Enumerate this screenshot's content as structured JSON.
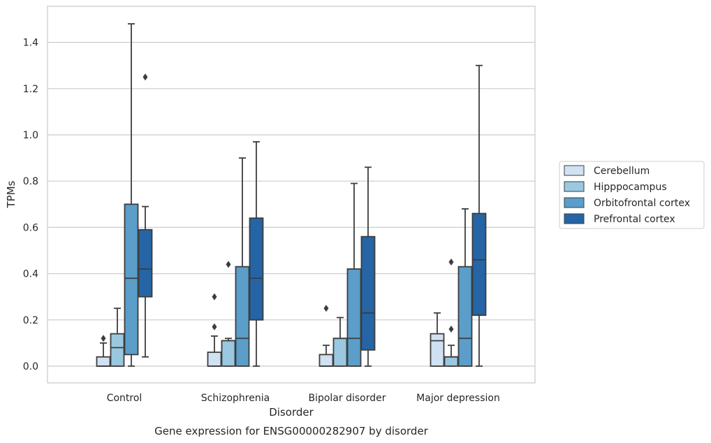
{
  "chart_data": {
    "type": "box",
    "title": "",
    "caption": "Gene expression for ENSG00000282907 by disorder",
    "xlabel": "Disorder",
    "ylabel": "TPMs",
    "ylim": [
      -0.07,
      1.56
    ],
    "yticks": [
      "0.0",
      "0.2",
      "0.4",
      "0.6",
      "0.8",
      "1.0",
      "1.2",
      "1.4"
    ],
    "grid": "horizontal",
    "legend_position": "right",
    "categories": [
      "Control",
      "Schizophrenia",
      "Bipolar disorder",
      "Major depression"
    ],
    "series": [
      {
        "name": "Cerebellum",
        "color": "#d0e1f2",
        "boxes": [
          {
            "whisker_low": 0.0,
            "q1": 0.0,
            "median": 0.0,
            "q3": 0.04,
            "whisker_high": 0.1,
            "outliers": [
              0.12
            ]
          },
          {
            "whisker_low": 0.0,
            "q1": 0.0,
            "median": 0.0,
            "q3": 0.06,
            "whisker_high": 0.13,
            "outliers": [
              0.17,
              0.3
            ]
          },
          {
            "whisker_low": 0.0,
            "q1": 0.0,
            "median": 0.0,
            "q3": 0.05,
            "whisker_high": 0.09,
            "outliers": [
              0.25
            ]
          },
          {
            "whisker_low": 0.0,
            "q1": 0.0,
            "median": 0.11,
            "q3": 0.14,
            "whisker_high": 0.23,
            "outliers": []
          }
        ]
      },
      {
        "name": "Hipppocampus",
        "color": "#9ac8e0",
        "boxes": [
          {
            "whisker_low": 0.0,
            "q1": 0.0,
            "median": 0.08,
            "q3": 0.14,
            "whisker_high": 0.25,
            "outliers": []
          },
          {
            "whisker_low": 0.0,
            "q1": 0.0,
            "median": 0.11,
            "q3": 0.11,
            "whisker_high": 0.12,
            "outliers": [
              0.44
            ]
          },
          {
            "whisker_low": 0.0,
            "q1": 0.0,
            "median": 0.12,
            "q3": 0.12,
            "whisker_high": 0.21,
            "outliers": []
          },
          {
            "whisker_low": 0.0,
            "q1": 0.0,
            "median": 0.04,
            "q3": 0.04,
            "whisker_high": 0.09,
            "outliers": [
              0.16,
              0.45
            ]
          }
        ]
      },
      {
        "name": "Orbitofrontal cortex",
        "color": "#5a9ec9",
        "boxes": [
          {
            "whisker_low": 0.0,
            "q1": 0.05,
            "median": 0.38,
            "q3": 0.7,
            "whisker_high": 1.48,
            "outliers": []
          },
          {
            "whisker_low": 0.0,
            "q1": 0.0,
            "median": 0.12,
            "q3": 0.43,
            "whisker_high": 0.9,
            "outliers": []
          },
          {
            "whisker_low": 0.0,
            "q1": 0.0,
            "median": 0.12,
            "q3": 0.42,
            "whisker_high": 0.79,
            "outliers": []
          },
          {
            "whisker_low": 0.0,
            "q1": 0.0,
            "median": 0.12,
            "q3": 0.43,
            "whisker_high": 0.68,
            "outliers": []
          }
        ]
      },
      {
        "name": "Prefrontal cortex",
        "color": "#2565a6",
        "boxes": [
          {
            "whisker_low": 0.04,
            "q1": 0.3,
            "median": 0.42,
            "q3": 0.59,
            "whisker_high": 0.69,
            "outliers": [
              1.25
            ]
          },
          {
            "whisker_low": 0.0,
            "q1": 0.2,
            "median": 0.38,
            "q3": 0.64,
            "whisker_high": 0.97,
            "outliers": []
          },
          {
            "whisker_low": 0.0,
            "q1": 0.07,
            "median": 0.23,
            "q3": 0.56,
            "whisker_high": 0.86,
            "outliers": []
          },
          {
            "whisker_low": 0.0,
            "q1": 0.22,
            "median": 0.46,
            "q3": 0.66,
            "whisker_high": 1.3,
            "outliers": []
          }
        ]
      }
    ]
  }
}
